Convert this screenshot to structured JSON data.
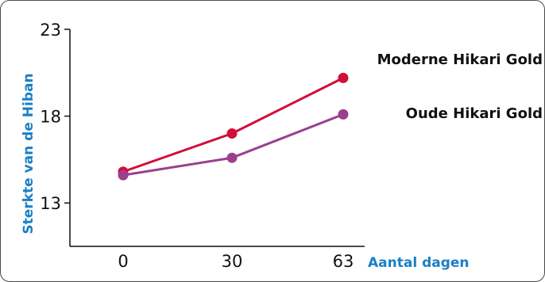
{
  "chart_data": {
    "type": "line",
    "x": [
      0,
      30,
      63
    ],
    "x_tick_labels": [
      "0",
      "30",
      "63"
    ],
    "xlabel": "Aantal dagen",
    "ylabel": "Sterkte van de Hiban",
    "y_ticks": [
      13,
      18,
      23
    ],
    "y_tick_labels": [
      "13",
      "18",
      "23"
    ],
    "ylim": [
      10.5,
      23
    ],
    "grid": false,
    "series": [
      {
        "name": "Moderne Hikari Gold",
        "color": "#d0103a",
        "values": [
          14.8,
          17.0,
          20.2
        ]
      },
      {
        "name": "Oude Hikari Gold",
        "color": "#9b3f8e",
        "values": [
          14.6,
          15.6,
          18.1
        ]
      }
    ],
    "axis_title_color": "#1a7fc4"
  }
}
